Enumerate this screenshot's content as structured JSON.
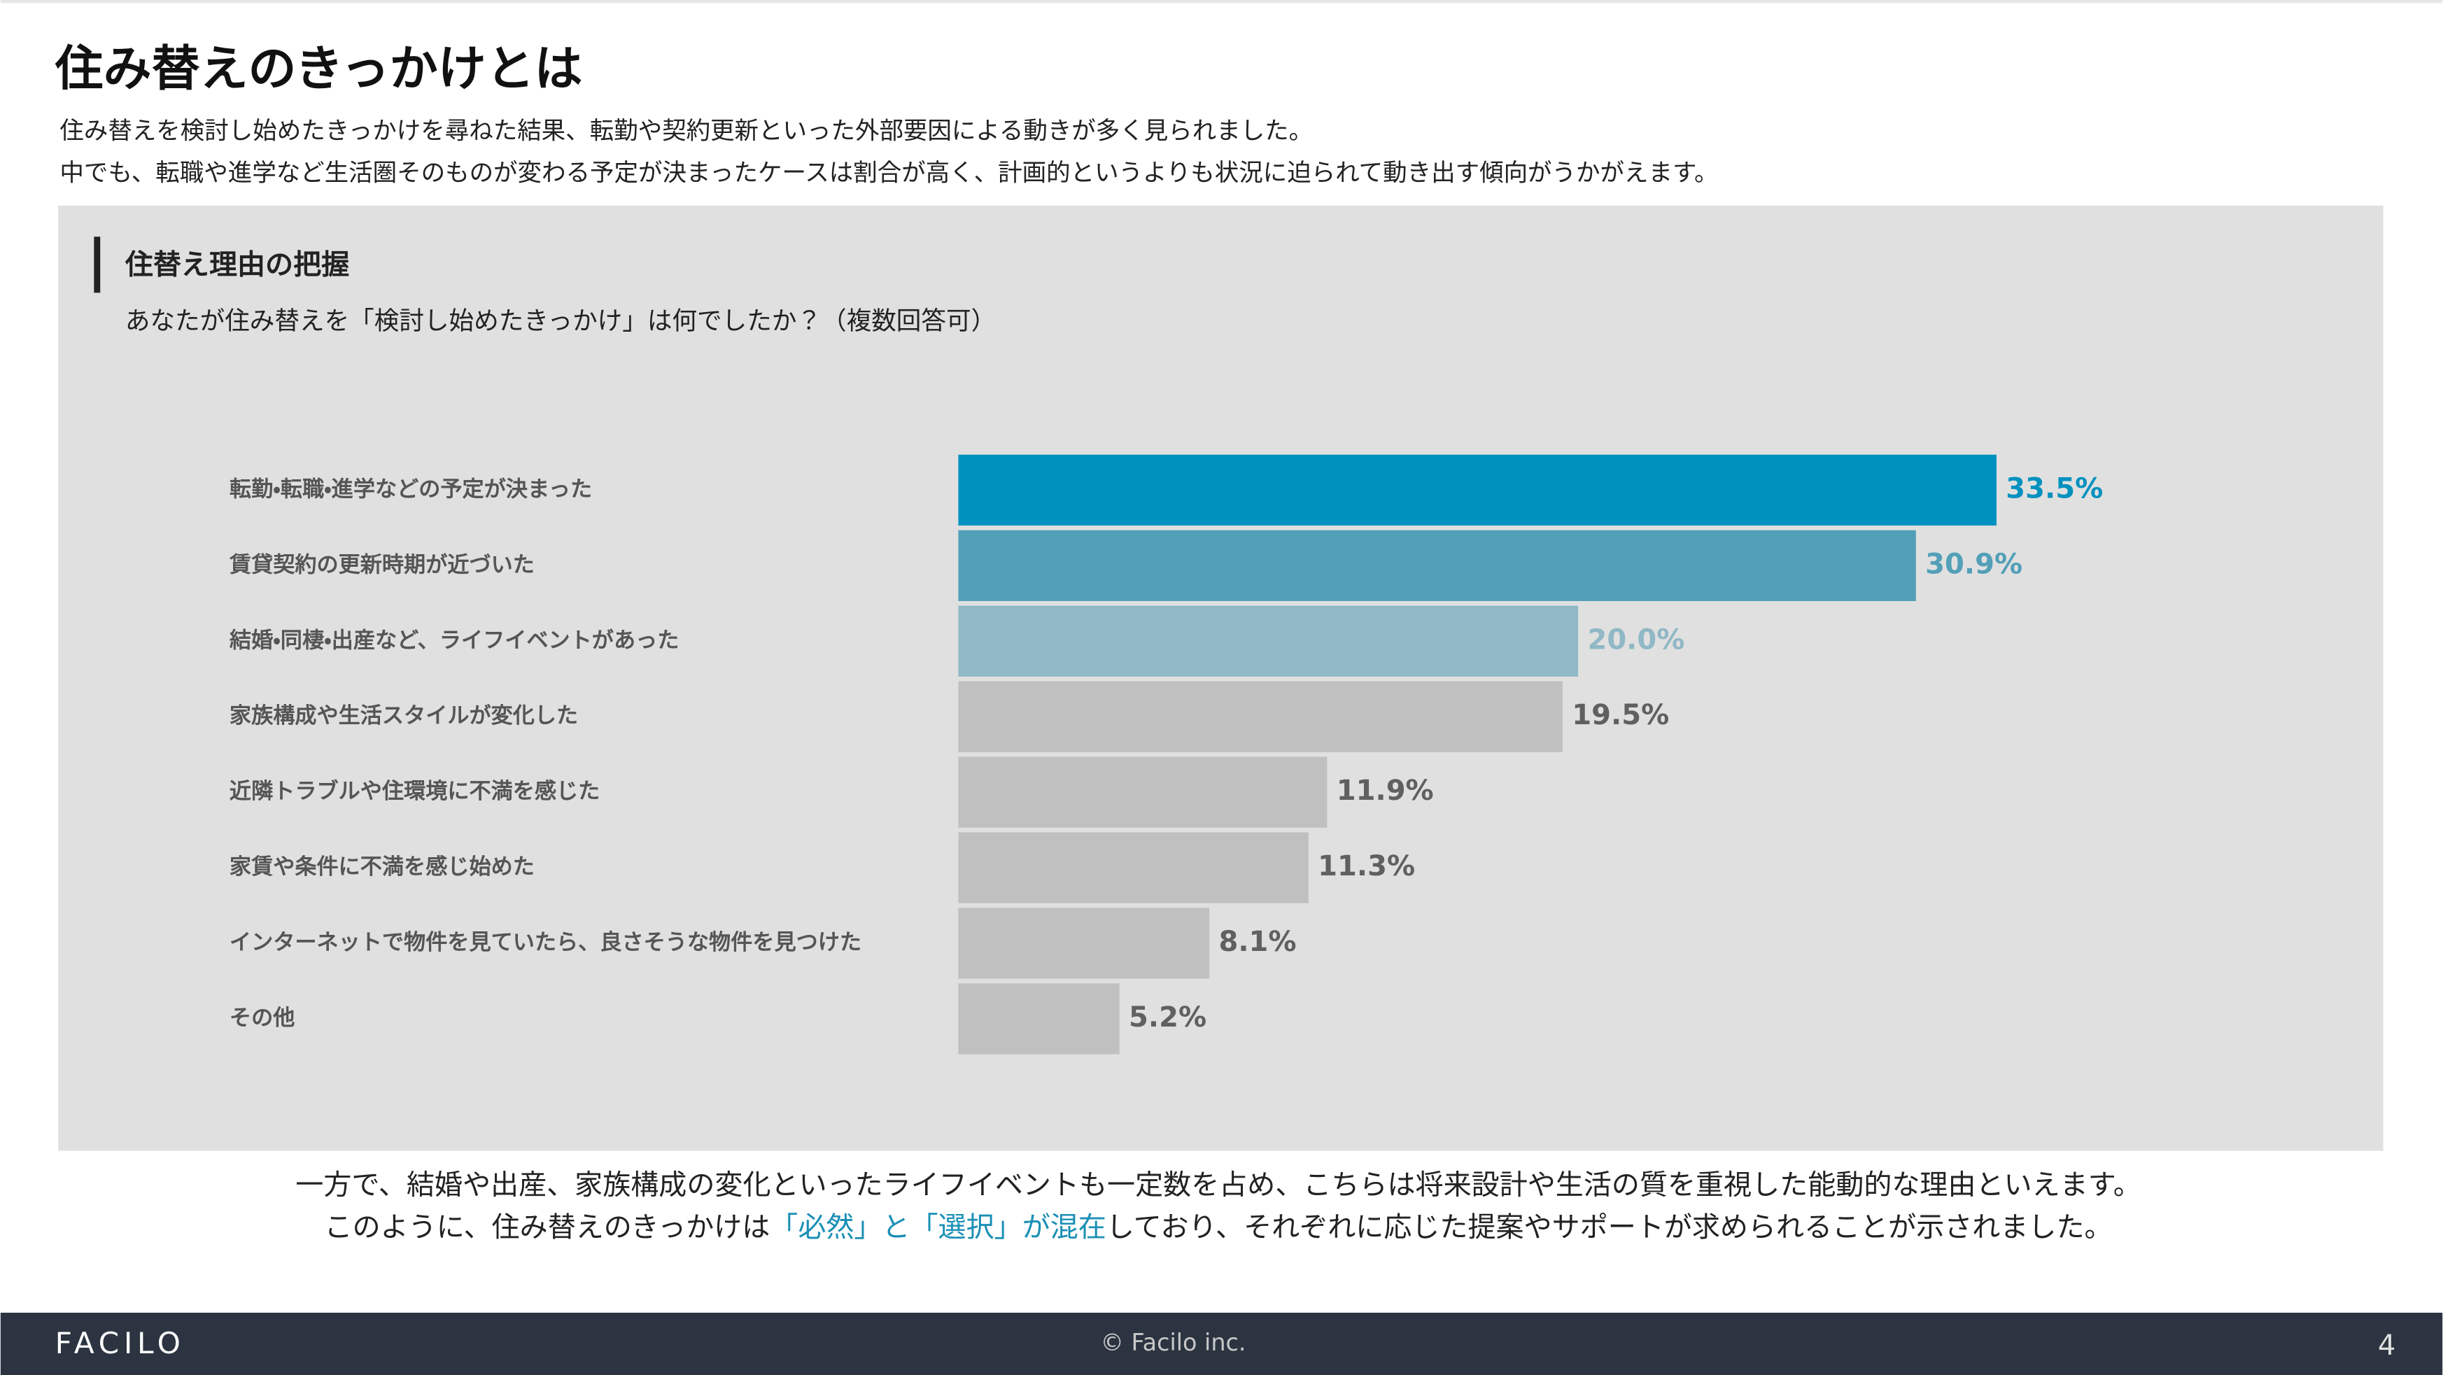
{
  "header": {
    "title": "住み替えのきっかけとは",
    "lead": [
      "住み替えを検討し始めたきっかけを尋ねた結果、転勤や契約更新といった外部要因による動きが多く見られました。",
      "中でも、転職や進学など生活圏そのものが変わる予定が決まったケースは割合が高く、計画的というよりも状況に迫られて動き出す傾向がうかがえます。"
    ]
  },
  "chart_data": {
    "type": "bar",
    "orientation": "horizontal",
    "title": "住替え理由の把握",
    "subtitle": "あなたが住み替えを「検討し始めたきっかけ」は何でしたか？（複数回答可）",
    "categories": [
      "転勤・転職・進学などの予定が決まった",
      "賃貸契約の更新時期が近づいた",
      "結婚・同棲・出産など、ライフイベントがあった",
      "家族構成や生活スタイルが変化した",
      "近隣トラブルや住環境に不満を感じた",
      "家賃や条件に不満を感じ始めた",
      "インターネットで物件を見ていたら、良さそうな物件を見つけた",
      "その他"
    ],
    "values": [
      33.5,
      30.9,
      20.0,
      19.5,
      11.9,
      11.3,
      8.1,
      5.2
    ],
    "value_labels": [
      "33.5%",
      "30.9%",
      "20.0%",
      "19.5%",
      "11.9%",
      "11.3%",
      "8.1%",
      "5.2%"
    ],
    "colors": [
      "#0091bf",
      "#529fb8",
      "#90b8c6",
      "#c0c0c0",
      "#c0c0c0",
      "#c0c0c0",
      "#c0c0c0",
      "#c0c0c0"
    ],
    "label_colors": [
      "#0091bf",
      "#529fb8",
      "#90b8c6",
      "#606060",
      "#606060",
      "#606060",
      "#606060",
      "#606060"
    ]
  },
  "conclusion": {
    "line1": "一方で、結婚や出産、家族構成の変化といったライフイベントも一定数を占め、こちらは将来設計や生活の質を重視した能動的な理由といえます。",
    "line2": [
      "このように、住み替えのきっかけは",
      "「必然」と「選択」が混在",
      "しており、それぞれに応じた提案やサポートが求められることが示されました。"
    ]
  },
  "footer": {
    "logo": "FACILO",
    "copyright": "© Facilo inc.",
    "page": "4"
  }
}
